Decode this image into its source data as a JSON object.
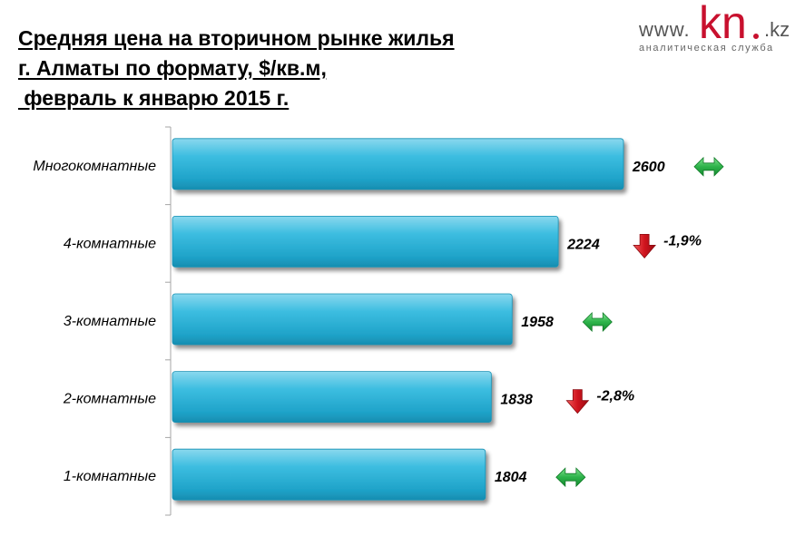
{
  "logo": {
    "www": "www.",
    "kn": "kn",
    "kz": ".kz",
    "subtitle": "аналитическая служба",
    "brand_color": "#c8102e"
  },
  "chart_data": {
    "type": "bar",
    "orientation": "horizontal",
    "title_lines": [
      "Средняя цена на вторичном рынке жилья",
      "г. Алматы по формату, $/кв.м,",
      " февраль к январю 2015 г."
    ],
    "categories": [
      "Многокомнатные",
      "4-комнатные",
      "3-комнатные",
      "2-комнатные",
      "1-комнатные"
    ],
    "values": [
      2600,
      2224,
      1958,
      1838,
      1804
    ],
    "changes": [
      {
        "direction": "no-change",
        "label": "",
        "icon": "double-arrow-icon"
      },
      {
        "direction": "down",
        "label": "-1,9%",
        "icon": "down-arrow-icon"
      },
      {
        "direction": "no-change",
        "label": "",
        "icon": "double-arrow-icon"
      },
      {
        "direction": "down",
        "label": "-2,8%",
        "icon": "down-arrow-icon"
      },
      {
        "direction": "no-change",
        "label": "",
        "icon": "double-arrow-icon"
      }
    ],
    "xlim": [
      0,
      2800
    ],
    "bar_color": "#31b6d8",
    "grid": false,
    "legend": "none",
    "colors": {
      "no_change": "#2db34a",
      "down": "#d0141e"
    }
  }
}
